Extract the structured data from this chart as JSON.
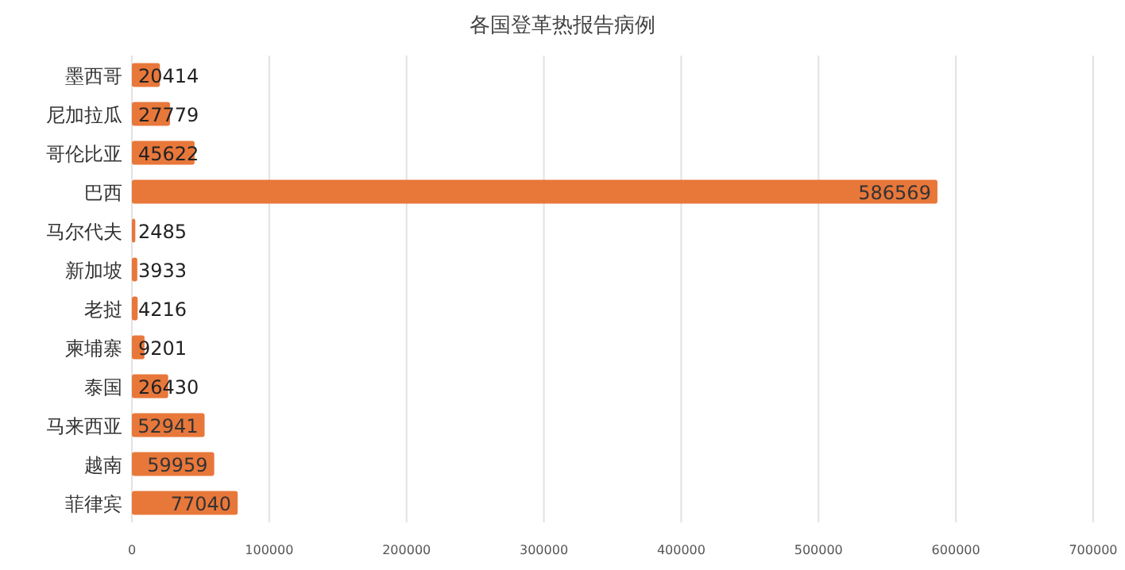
{
  "chart_data": {
    "type": "bar",
    "orientation": "horizontal",
    "title": "各国登革热报告病例",
    "categories": [
      "墨西哥",
      "尼加拉瓜",
      "哥伦比亚",
      "巴西",
      "马尔代夫",
      "新加坡",
      "老挝",
      "柬埔寨",
      "泰国",
      "马来西亚",
      "越南",
      "菲律宾"
    ],
    "values": [
      20414,
      27779,
      45622,
      586569,
      2485,
      3933,
      4216,
      9201,
      26430,
      52941,
      59959,
      77040
    ],
    "color": "#e8773a",
    "data_labels": true,
    "grid": "x",
    "xlim": [
      0,
      700000
    ],
    "xticks": [
      0,
      100000,
      200000,
      300000,
      400000,
      500000,
      600000,
      700000
    ]
  }
}
